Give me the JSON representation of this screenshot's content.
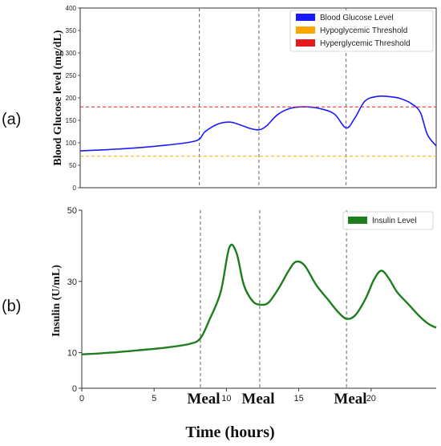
{
  "panel_labels": {
    "a": "(a)",
    "b": "(b)"
  },
  "meal_labels": [
    "Meal",
    "Meal",
    "Meal"
  ],
  "x_axis_title": "Time (hours)",
  "chart_data": [
    {
      "type": "line",
      "panel": "(a)",
      "ylabel": "Blood Glucose level (mg/dL)",
      "xlim": [
        0,
        24.5
      ],
      "ylim": [
        0,
        400
      ],
      "yticks": [
        0,
        50,
        100,
        150,
        200,
        250,
        300,
        350,
        400
      ],
      "vlines": [
        8.2,
        12.3,
        18.3
      ],
      "grid": false,
      "legend_position": "top-right",
      "series": [
        {
          "name": "Blood Glucose Level",
          "color": "#1a1aff",
          "x": [
            0,
            2,
            4,
            6,
            7.5,
            8.2,
            8.6,
            9.5,
            10.3,
            11,
            11.7,
            12.3,
            12.8,
            13.6,
            14.5,
            15.5,
            16.5,
            17.5,
            18.3,
            18.9,
            19.6,
            20.4,
            21.2,
            22,
            22.8,
            23.4,
            23.9,
            24.5
          ],
          "y": [
            82,
            85,
            89,
            95,
            101,
            108,
            125,
            142,
            146,
            140,
            132,
            129,
            137,
            163,
            177,
            180,
            176,
            164,
            133,
            155,
            193,
            203,
            203,
            199,
            187,
            168,
            118,
            93
          ]
        },
        {
          "name": "Hypoglycemic Threshold",
          "color": "#ffa500",
          "style": "dashed",
          "x": [
            0,
            24.5
          ],
          "y": [
            70,
            70
          ]
        },
        {
          "name": "Hyperglycemic Threshold",
          "color": "#e41a1c",
          "style": "dashed",
          "x": [
            0,
            24.5
          ],
          "y": [
            180,
            180
          ]
        }
      ]
    },
    {
      "type": "line",
      "panel": "(b)",
      "ylabel": "Insulin (U/mL)",
      "xlim": [
        0,
        24.5
      ],
      "ylim": [
        0,
        50
      ],
      "yticks": [
        0,
        10,
        30,
        50
      ],
      "xticks": [
        0,
        5,
        10,
        15,
        20
      ],
      "vlines": [
        8.2,
        12.3,
        18.3
      ],
      "grid": false,
      "legend_position": "top-right",
      "series": [
        {
          "name": "Insulin Level",
          "color": "#1e7d1e",
          "x": [
            0,
            2,
            4,
            6,
            7.5,
            8.2,
            8.8,
            9.6,
            10.2,
            10.7,
            11.2,
            11.8,
            12.3,
            12.9,
            13.6,
            14.3,
            14.8,
            15.4,
            16.2,
            17,
            17.7,
            18.3,
            18.9,
            19.6,
            20.2,
            20.7,
            21.2,
            21.8,
            22.6,
            23.4,
            24,
            24.5
          ],
          "y": [
            9.5,
            10,
            10.7,
            11.5,
            12.5,
            14,
            19,
            27,
            39.5,
            38,
            29,
            24.5,
            23.5,
            24,
            28,
            33,
            35.5,
            34.5,
            29,
            25,
            21.5,
            19.5,
            20.5,
            25,
            30.5,
            33,
            31,
            27,
            23.5,
            20,
            18,
            17
          ]
        }
      ]
    }
  ]
}
